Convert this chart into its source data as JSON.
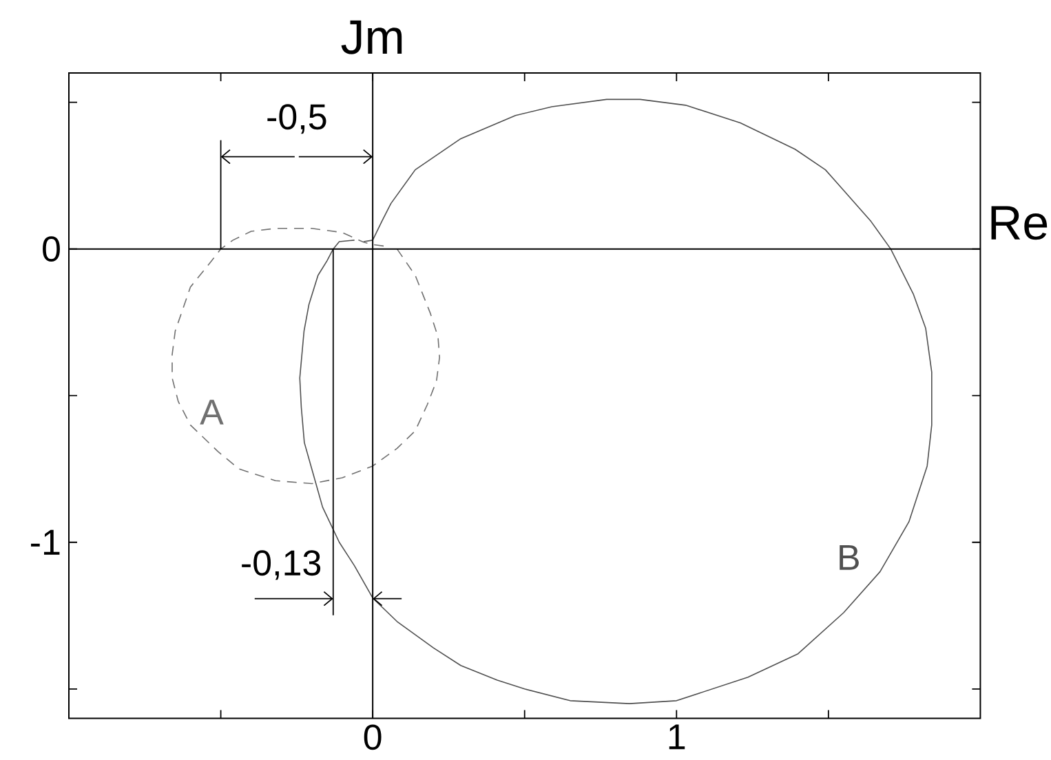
{
  "chart_data": {
    "type": "line",
    "xlim": [
      -1,
      2
    ],
    "ylim": [
      -1.6,
      0.6
    ],
    "xticks": [
      {
        "value": -0.5,
        "label": null
      },
      0,
      {
        "value": 0.5,
        "label": null
      },
      1,
      {
        "value": 1.5,
        "label": null
      }
    ],
    "yticks": [
      {
        "value": -1.5,
        "label": null
      },
      -1,
      {
        "value": -0.5,
        "label": null
      },
      0,
      {
        "value": 0.5,
        "label": null
      }
    ],
    "series": [
      {
        "name": "A",
        "color": "#707070",
        "line_style": "dashed",
        "x": [
          0.08,
          0.14,
          0.19,
          0.215,
          0.22,
          0.21,
          0.18,
          0.14,
          0.08,
          0,
          -0.1,
          -0.2,
          -0.32,
          -0.44,
          -0.51,
          -0.6,
          -0.64,
          -0.66,
          -0.66,
          -0.65,
          -0.6,
          -0.53,
          -0.5,
          -0.46,
          -0.4,
          -0.32,
          -0.2,
          -0.1,
          -0.03,
          0,
          0.05
        ],
        "values": [
          0,
          -0.09,
          -0.22,
          -0.3,
          -0.37,
          -0.45,
          -0.53,
          -0.62,
          -0.68,
          -0.74,
          -0.78,
          -0.8,
          -0.79,
          -0.75,
          -0.69,
          -0.6,
          -0.52,
          -0.44,
          -0.36,
          -0.28,
          -0.13,
          -0.04,
          0,
          0.03,
          0.06,
          0.07,
          0.07,
          0.056,
          0.023,
          0.015,
          0.008
        ]
      },
      {
        "name": "B",
        "color": "#505050",
        "line_style": "solid",
        "x": [
          -0.06,
          -0.11,
          -0.13,
          -0.15,
          -0.18,
          -0.21,
          -0.226,
          -0.24,
          -0.235,
          -0.225,
          -0.195,
          -0.165,
          -0.11,
          -0.06,
          0,
          0.08,
          0.2,
          0.29,
          0.41,
          0.5,
          0.65,
          0.845,
          1.0,
          1.235,
          1.4,
          1.55,
          1.67,
          1.765,
          1.825,
          1.84,
          1.84,
          1.82,
          1.78,
          1.705,
          1.64,
          1.55,
          1.49,
          1.39,
          1.21,
          1.03,
          0.88,
          0.77,
          0.59,
          0.47,
          0.29,
          0.14,
          0.06,
          0.03,
          0,
          -0.03
        ],
        "values": [
          0.03,
          0.025,
          0,
          -0.04,
          -0.09,
          -0.19,
          -0.28,
          -0.44,
          -0.54,
          -0.66,
          -0.77,
          -0.88,
          -1.0,
          -1.08,
          -1.19,
          -1.27,
          -1.36,
          -1.42,
          -1.47,
          -1.5,
          -1.54,
          -1.55,
          -1.54,
          -1.46,
          -1.38,
          -1.24,
          -1.1,
          -0.93,
          -0.74,
          -0.6,
          -0.42,
          -0.27,
          -0.155,
          0,
          0.094,
          0.2,
          0.27,
          0.34,
          0.43,
          0.49,
          0.51,
          0.51,
          0.485,
          0.455,
          0.376,
          0.27,
          0.155,
          0.094,
          0.03,
          0.025
        ]
      }
    ],
    "ref_lines": [
      {
        "axis": "x",
        "value": 0,
        "label": "Jm"
      },
      {
        "axis": "y",
        "value": 0,
        "label": "Re"
      }
    ],
    "annotations": [
      "-0,5",
      "-0,13"
    ]
  }
}
